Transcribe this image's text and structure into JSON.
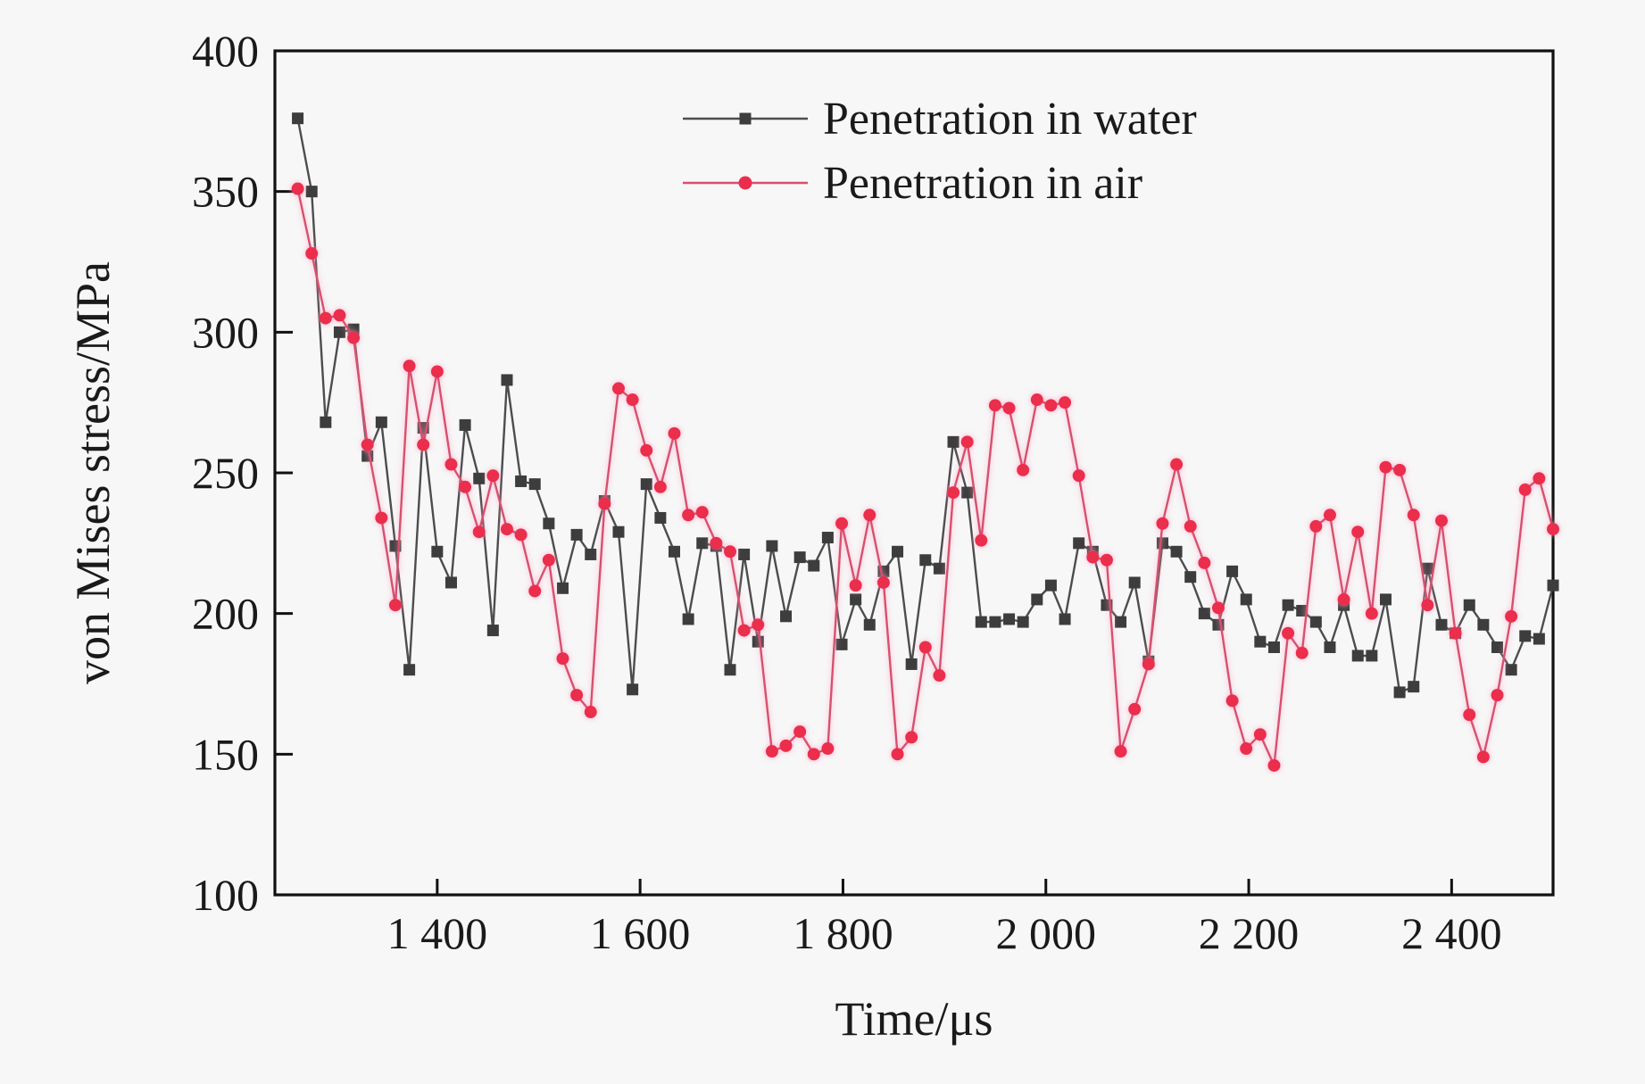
{
  "figure": {
    "background_color": "#f7f7f7",
    "frame_color": "#111111"
  },
  "chart_data": {
    "type": "line",
    "title": "",
    "xlabel": "Time/μs",
    "ylabel": "von Mises stress/MPa",
    "xlim": [
      1240,
      2500
    ],
    "ylim": [
      100,
      400
    ],
    "grid": false,
    "legend_position": "upper-center-right",
    "x_ticks": [
      {
        "value": 1400,
        "label": "1 400"
      },
      {
        "value": 1600,
        "label": "1 600"
      },
      {
        "value": 1800,
        "label": "1 800"
      },
      {
        "value": 2000,
        "label": "2 000"
      },
      {
        "value": 2200,
        "label": "2 200"
      },
      {
        "value": 2400,
        "label": "2 400"
      }
    ],
    "y_ticks": [
      {
        "value": 100,
        "label": "100"
      },
      {
        "value": 150,
        "label": "150"
      },
      {
        "value": 200,
        "label": "200"
      },
      {
        "value": 250,
        "label": "250"
      },
      {
        "value": 300,
        "label": "300"
      },
      {
        "value": 350,
        "label": "350"
      },
      {
        "value": 400,
        "label": "400"
      }
    ],
    "t_start": 1262.5,
    "t_step": 13.75,
    "series": [
      {
        "name": "Penetration in water",
        "marker": "square",
        "line_color": "#4d4d4d",
        "marker_color": "#3d3d3d",
        "values": [
          376,
          350,
          268,
          300,
          301,
          256,
          268,
          224,
          180,
          266,
          222,
          211,
          267,
          248,
          194,
          283,
          247,
          246,
          232,
          209,
          228,
          221,
          240,
          229,
          173,
          246,
          234,
          222,
          198,
          225,
          224,
          180,
          221,
          190,
          224,
          199,
          220,
          217,
          227,
          189,
          205,
          196,
          215,
          222,
          182,
          219,
          216,
          261,
          243,
          197,
          197,
          198,
          197,
          205,
          210,
          198,
          225,
          222,
          203,
          197,
          211,
          183,
          225,
          222,
          213,
          200,
          196,
          215,
          205,
          190,
          188,
          203,
          201,
          197,
          188,
          203,
          185,
          185,
          205,
          172,
          174,
          216,
          196,
          193,
          203,
          196,
          188,
          180,
          192,
          191,
          210
        ]
      },
      {
        "name": "Penetration in air",
        "marker": "circle",
        "line_color": "#d6516d",
        "marker_color": "#ea2d4c",
        "glow_color": "#ff9ec4",
        "values": [
          351,
          328,
          305,
          306,
          298,
          260,
          234,
          203,
          288,
          260,
          286,
          253,
          245,
          229,
          249,
          230,
          228,
          208,
          219,
          184,
          171,
          165,
          239,
          280,
          276,
          258,
          245,
          264,
          235,
          236,
          225,
          222,
          194,
          196,
          151,
          153,
          158,
          150,
          152,
          232,
          210,
          235,
          211,
          150,
          156,
          188,
          178,
          243,
          261,
          226,
          274,
          273,
          251,
          276,
          274,
          275,
          249,
          220,
          219,
          151,
          166,
          182,
          232,
          253,
          231,
          218,
          202,
          169,
          152,
          157,
          146,
          193,
          186,
          231,
          235,
          205,
          229,
          200,
          252,
          251,
          235,
          203,
          233,
          193,
          164,
          149,
          171,
          199,
          244,
          248,
          230
        ]
      }
    ]
  }
}
